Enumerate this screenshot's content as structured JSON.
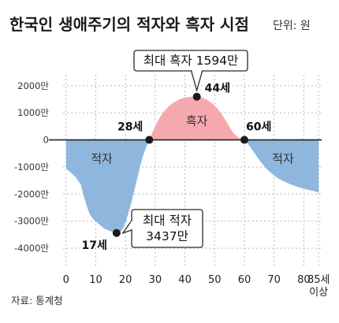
{
  "chart_data": {
    "type": "area",
    "title": "한국인 생애주기의 적자와 흑자 시점",
    "unit": "단위: 원",
    "x_ticks": [
      "0",
      "10",
      "20",
      "30",
      "40",
      "50",
      "60",
      "70",
      "80"
    ],
    "x_last_tick": [
      "85세",
      "이상"
    ],
    "xlim": [
      -1,
      86
    ],
    "y_ticks": [
      "2000만",
      "1000만",
      "0",
      "-1000만",
      "-2000만",
      "-3000만",
      "-4000만"
    ],
    "ylim": [
      -4200,
      2400
    ],
    "y_unit": "만원",
    "x": [
      0,
      1,
      2,
      3,
      4,
      5,
      6,
      7,
      8,
      9,
      10,
      11,
      12,
      13,
      14,
      15,
      16,
      17,
      18,
      19,
      20,
      21,
      22,
      23,
      24,
      25,
      26,
      27,
      28,
      29,
      30,
      31,
      32,
      33,
      34,
      35,
      36,
      37,
      38,
      39,
      40,
      41,
      42,
      43,
      44,
      45,
      46,
      47,
      48,
      49,
      50,
      51,
      52,
      53,
      54,
      55,
      56,
      57,
      58,
      59,
      60,
      61,
      62,
      63,
      64,
      65,
      66,
      67,
      68,
      69,
      70,
      71,
      72,
      73,
      74,
      75,
      76,
      77,
      78,
      79,
      80,
      81,
      82,
      83,
      84,
      85
    ],
    "values": [
      -1050,
      -1150,
      -1250,
      -1350,
      -1500,
      -1650,
      -2100,
      -2450,
      -2750,
      -2900,
      -3000,
      -3100,
      -3200,
      -3280,
      -3330,
      -3370,
      -3410,
      -3437,
      -3420,
      -3300,
      -3050,
      -2700,
      -2300,
      -1850,
      -1400,
      -950,
      -550,
      -250,
      0,
      250,
      500,
      720,
      900,
      1050,
      1180,
      1280,
      1360,
      1430,
      1490,
      1530,
      1560,
      1580,
      1590,
      1593,
      1594,
      1580,
      1550,
      1500,
      1440,
      1360,
      1260,
      1140,
      1000,
      840,
      660,
      480,
      300,
      180,
      90,
      30,
      0,
      -120,
      -260,
      -420,
      -580,
      -740,
      -880,
      -1010,
      -1120,
      -1220,
      -1310,
      -1390,
      -1460,
      -1520,
      -1570,
      -1620,
      -1660,
      -1700,
      -1740,
      -1770,
      -1800,
      -1830,
      -1860,
      -1880,
      -1910,
      -1950
    ],
    "regions": [
      {
        "label": "적자",
        "x": 12,
        "y": -700
      },
      {
        "label": "흑자",
        "x": 44,
        "y": 700
      },
      {
        "label": "적자",
        "x": 73,
        "y": -700
      }
    ],
    "markers": [
      {
        "x": 17,
        "y": -3437,
        "label": "17세"
      },
      {
        "x": 28,
        "y": 0,
        "label": "28세"
      },
      {
        "x": 44,
        "y": 1594,
        "label": "44세"
      },
      {
        "x": 60,
        "y": 0,
        "label": "60세"
      }
    ],
    "callouts": [
      {
        "lines": [
          "최대 흑자 1594만"
        ],
        "target": 2
      },
      {
        "lines": [
          "최대 적자",
          "3437만"
        ],
        "target": 0
      }
    ],
    "colors": {
      "deficit": "#8fb6dc",
      "surplus": "#f5a9ae",
      "marker": "#1a1a1a",
      "callout_border": "#2a2a2a",
      "grid": "#b9b9b9"
    },
    "source": "자료: 통계청"
  }
}
